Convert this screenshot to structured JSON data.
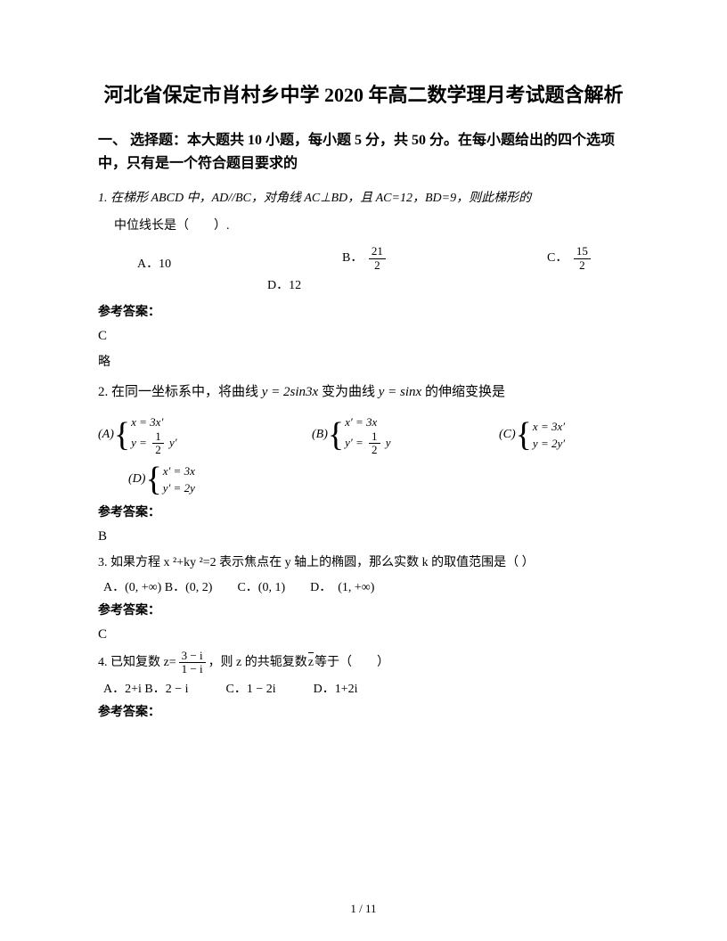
{
  "title": "河北省保定市肖村乡中学 2020 年高二数学理月考试题含解析",
  "sectionHeader": "一、 选择题：本大题共 10 小题，每小题 5 分，共 50 分。在每小题给出的四个选项中，只有是一个符合题目要求的",
  "q1": {
    "line1": "1. 在梯形 ABCD 中，AD//BC，对角线 AC⊥BD，且 AC=12，BD=9，则此梯形的",
    "line2": "中位线长是（　　）.",
    "optA": "A．",
    "valA": "10",
    "optB": "B．",
    "fracB_num": "21",
    "fracB_den": "2",
    "optC": "C．",
    "fracC_num": "15",
    "fracC_den": "2",
    "optD": "D．",
    "valD": "12",
    "ansLabel": "参考答案：",
    "ans": "C",
    "note": "略"
  },
  "q2": {
    "prefix": "2. 在同一坐标系中，将曲线",
    "eq1": "y = 2sin3x",
    "mid": " 变为曲线 ",
    "eq2": "y = sinx",
    "suffix": " 的伸缩变换是",
    "A_label": "(A)",
    "A_l1": "x = 3x′",
    "A_l2a": "y = ",
    "A_f_num": "1",
    "A_f_den": "2",
    "A_l2b": " y′",
    "B_label": "(B)",
    "B_l1": "x′ = 3x",
    "B_l2a": "y′ = ",
    "B_f_num": "1",
    "B_f_den": "2",
    "B_l2b": " y",
    "C_label": "(C)",
    "C_l1": "x = 3x′",
    "C_l2": "y = 2y′",
    "D_label": "(D)",
    "D_l1": "x′ = 3x",
    "D_l2": "y′ = 2y",
    "ansLabel": "参考答案：",
    "ans": "B"
  },
  "q3": {
    "text": "3. 如果方程 x ²+ky ²=2 表示焦点在 y 轴上的椭圆，那么实数 k 的取值范围是（ ）",
    "opts": "A．(0, +∞)  B．(0, 2)　　C．(0, 1)　　D．　(1, +∞)",
    "ansLabel": "参考答案：",
    "ans": "C"
  },
  "q4": {
    "prefix": "4. 已知复数 z=",
    "f_num": "3 − i",
    "f_den": "1 − i",
    "mid1": "，则 z 的共轭复数",
    "zbar": "z",
    "mid2": "等于（　　）",
    "opts": "A．2+i B．2 − i　　　C．1 − 2i　　　D．1+2i",
    "ansLabel": "参考答案："
  },
  "footer": "1 / 11"
}
